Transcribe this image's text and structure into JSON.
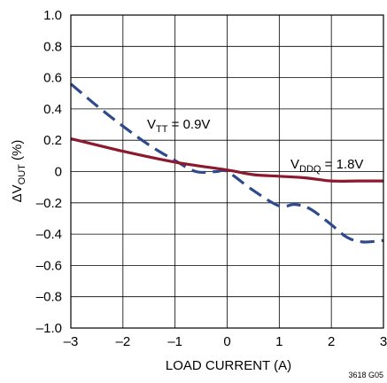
{
  "chart_data": {
    "type": "line",
    "xlabel": "LOAD CURRENT (A)",
    "ylabel": {
      "prefix": "ΔV",
      "sub": "OUT",
      "suffix": " (%)"
    },
    "xlim": [
      -3,
      3
    ],
    "ylim": [
      -1.0,
      1.0
    ],
    "x_ticks": [
      -3,
      -2,
      -1,
      0,
      1,
      2,
      3
    ],
    "x_tick_labels": [
      "–3",
      "–2",
      "–1",
      "0",
      "1",
      "2",
      "3"
    ],
    "y_ticks": [
      1.0,
      0.8,
      0.6,
      0.4,
      0.2,
      0,
      -0.2,
      -0.4,
      -0.6,
      -0.8,
      -1.0
    ],
    "y_tick_labels": [
      "1.0",
      "0.8",
      "0.6",
      "0.4",
      "0.2",
      "0",
      "–0.2",
      "–0.4",
      "–0.6",
      "–0.8",
      "–1.0"
    ],
    "grid": true,
    "series": [
      {
        "key": "vtt",
        "label_main": "V",
        "label_sub": "TT",
        "label_rest": " = 0.9V",
        "color": "#2f4a8c",
        "dash": true,
        "x": [
          -3,
          -2.5,
          -2,
          -1.5,
          -1,
          -0.6,
          -0.2,
          0,
          0.5,
          1,
          1.3,
          1.6,
          2,
          2.3,
          2.6,
          3
        ],
        "y": [
          0.56,
          0.42,
          0.29,
          0.17,
          0.07,
          0.0,
          0.0,
          0.0,
          -0.12,
          -0.22,
          -0.21,
          -0.24,
          -0.34,
          -0.42,
          -0.45,
          -0.44
        ]
      },
      {
        "key": "vddq",
        "label_main": "V",
        "label_sub": "DDQ",
        "label_rest": " = 1.8V",
        "color": "#8b1a2e",
        "dash": false,
        "x": [
          -3,
          -2,
          -1,
          0,
          0.5,
          1,
          1.5,
          2,
          2.5,
          3
        ],
        "y": [
          0.21,
          0.13,
          0.06,
          0.01,
          -0.02,
          -0.03,
          -0.04,
          -0.06,
          -0.06,
          -0.06
        ]
      }
    ],
    "figure_id": "3618 G05"
  }
}
